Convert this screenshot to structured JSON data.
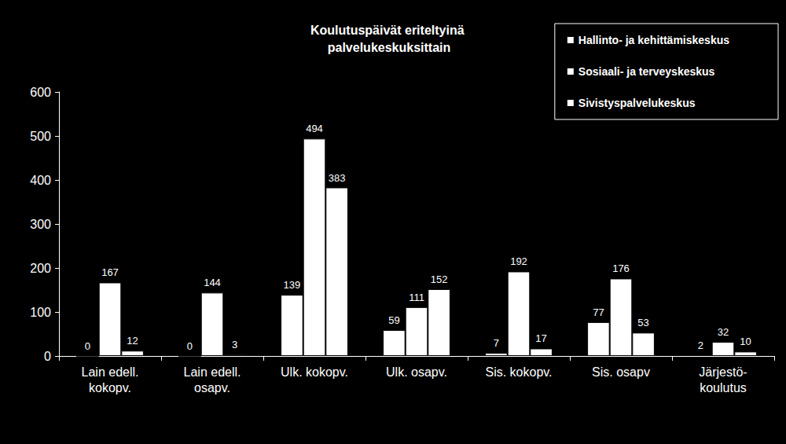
{
  "chart_data": {
    "type": "bar",
    "title": "Koulutuspäivät eriteltyinä palvelukeskuksittain",
    "categories": [
      "Lain edell.\nkokopv.",
      "Lain edell.\nosapv.",
      "Ulk. kokopv.",
      "Ulk. osapv.",
      "Sis. kokopv.",
      "Sis. osapv",
      "Järjestö-\nkoulutus"
    ],
    "series": [
      {
        "name": "Hallinto- ja kehittämiskeskus",
        "color": "#ffffff",
        "values": [
          0,
          0,
          139,
          59,
          7,
          77,
          2
        ]
      },
      {
        "name": "Sosiaali- ja terveyskeskus",
        "color": "#ffffff",
        "values": [
          167,
          144,
          494,
          111,
          192,
          176,
          32
        ]
      },
      {
        "name": "Sivistyspalvelukeskus",
        "color": "#ffffff",
        "values": [
          12,
          3,
          383,
          152,
          17,
          53,
          10
        ]
      }
    ],
    "ylim": [
      0,
      600
    ],
    "yticks": [
      0,
      100,
      200,
      300,
      400,
      500,
      600
    ],
    "grid": false,
    "legend": "upper right",
    "data_labels": true
  }
}
